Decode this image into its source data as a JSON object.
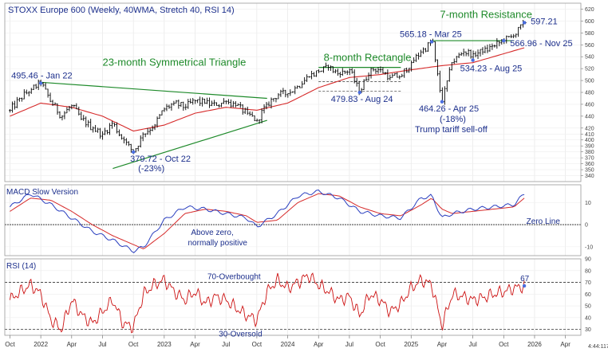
{
  "chart_data": {
    "type": "line",
    "title": "STOXX Europe 600 (Weekly, 40WMA, Stretch 40, RSI 14)",
    "colors": {
      "price": "#000000",
      "ma": "#d62a2a",
      "macd": "#2a3fbf",
      "signal": "#d62a2a",
      "rsi": "#cc1111",
      "trend": "#1e8a2a",
      "annotation": "#1c2f8c"
    },
    "x_range": [
      "2021-10",
      "2026-05"
    ],
    "x_ticks": [
      {
        "label": "Oct",
        "t": 0
      },
      {
        "label": "2022",
        "t": 3
      },
      {
        "label": "Apr",
        "t": 6
      },
      {
        "label": "Jul",
        "t": 9
      },
      {
        "label": "Oct",
        "t": 12
      },
      {
        "label": "2023",
        "t": 15
      },
      {
        "label": "Apr",
        "t": 18
      },
      {
        "label": "Jul",
        "t": 21
      },
      {
        "label": "Oct",
        "t": 24
      },
      {
        "label": "2024",
        "t": 27
      },
      {
        "label": "Apr",
        "t": 30
      },
      {
        "label": "Jul",
        "t": 33
      },
      {
        "label": "Oct",
        "t": 36
      },
      {
        "label": "2025",
        "t": 39
      },
      {
        "label": "Apr",
        "t": 42
      },
      {
        "label": "Jul",
        "t": 45
      },
      {
        "label": "Oct",
        "t": 48
      },
      {
        "label": "2026",
        "t": 51
      },
      {
        "label": "Apr",
        "t": 54
      }
    ],
    "price_panel": {
      "ylim": [
        330,
        630
      ],
      "y_ticks": [
        340,
        350,
        360,
        370,
        380,
        390,
        400,
        410,
        420,
        440,
        460,
        480,
        500,
        520,
        540,
        560,
        580,
        600,
        620
      ],
      "price_anchors": [
        {
          "t": 0,
          "v": 450
        },
        {
          "t": 1,
          "v": 470
        },
        {
          "t": 2,
          "v": 485
        },
        {
          "t": 3,
          "v": 495.46
        },
        {
          "t": 4,
          "v": 465
        },
        {
          "t": 5,
          "v": 440
        },
        {
          "t": 6,
          "v": 458
        },
        {
          "t": 7,
          "v": 435
        },
        {
          "t": 8,
          "v": 420
        },
        {
          "t": 9,
          "v": 410
        },
        {
          "t": 10,
          "v": 428
        },
        {
          "t": 11,
          "v": 400
        },
        {
          "t": 12,
          "v": 379.72
        },
        {
          "t": 13,
          "v": 410
        },
        {
          "t": 14,
          "v": 425
        },
        {
          "t": 15,
          "v": 452
        },
        {
          "t": 16,
          "v": 462
        },
        {
          "t": 17,
          "v": 455
        },
        {
          "t": 18,
          "v": 466
        },
        {
          "t": 19,
          "v": 462
        },
        {
          "t": 20,
          "v": 458
        },
        {
          "t": 21,
          "v": 465
        },
        {
          "t": 22,
          "v": 458
        },
        {
          "t": 23,
          "v": 445
        },
        {
          "t": 24,
          "v": 433
        },
        {
          "t": 25,
          "v": 460
        },
        {
          "t": 26,
          "v": 476
        },
        {
          "t": 27,
          "v": 478
        },
        {
          "t": 28,
          "v": 490
        },
        {
          "t": 29,
          "v": 506
        },
        {
          "t": 30,
          "v": 515
        },
        {
          "t": 31,
          "v": 522
        },
        {
          "t": 32,
          "v": 510
        },
        {
          "t": 33,
          "v": 518
        },
        {
          "t": 34,
          "v": 479.83
        },
        {
          "t": 35,
          "v": 520
        },
        {
          "t": 36,
          "v": 518
        },
        {
          "t": 37,
          "v": 505
        },
        {
          "t": 38,
          "v": 508
        },
        {
          "t": 39,
          "v": 530
        },
        {
          "t": 40,
          "v": 548
        },
        {
          "t": 41,
          "v": 565.18
        },
        {
          "t": 42,
          "v": 464.26
        },
        {
          "t": 43,
          "v": 530
        },
        {
          "t": 44,
          "v": 548
        },
        {
          "t": 45,
          "v": 545
        },
        {
          "t": 46,
          "v": 548
        },
        {
          "t": 47,
          "v": 558
        },
        {
          "t": 48,
          "v": 566.96
        },
        {
          "t": 49,
          "v": 575
        },
        {
          "t": 50,
          "v": 597.21
        }
      ],
      "ma_anchors": [
        {
          "t": 0,
          "v": 440
        },
        {
          "t": 3,
          "v": 462
        },
        {
          "t": 6,
          "v": 455
        },
        {
          "t": 9,
          "v": 440
        },
        {
          "t": 12,
          "v": 415
        },
        {
          "t": 15,
          "v": 425
        },
        {
          "t": 18,
          "v": 445
        },
        {
          "t": 21,
          "v": 455
        },
        {
          "t": 24,
          "v": 450
        },
        {
          "t": 27,
          "v": 462
        },
        {
          "t": 30,
          "v": 488
        },
        {
          "t": 33,
          "v": 505
        },
        {
          "t": 36,
          "v": 510
        },
        {
          "t": 39,
          "v": 518
        },
        {
          "t": 42,
          "v": 525
        },
        {
          "t": 45,
          "v": 530
        },
        {
          "t": 48,
          "v": 545
        },
        {
          "t": 50,
          "v": 555
        }
      ],
      "trendlines": [
        {
          "name": "triangle-upper",
          "from": {
            "t": 3,
            "v": 497
          },
          "to": {
            "t": 25,
            "v": 470
          }
        },
        {
          "name": "triangle-lower",
          "from": {
            "t": 10,
            "v": 352
          },
          "to": {
            "t": 25,
            "v": 433
          }
        },
        {
          "name": "rectangle-top",
          "from": {
            "t": 30,
            "v": 522
          },
          "to": {
            "t": 38,
            "v": 522
          }
        },
        {
          "name": "resistance",
          "from": {
            "t": 41,
            "v": 567
          },
          "to": {
            "t": 49,
            "v": 567
          }
        }
      ],
      "dashed_levels": [
        {
          "name": "rectangle-bottom",
          "from": {
            "t": 30,
            "v": 482
          },
          "to": {
            "t": 38,
            "v": 482
          }
        },
        {
          "name": "rectangle-mid",
          "from": {
            "t": 30,
            "v": 498
          },
          "to": {
            "t": 38,
            "v": 498
          }
        }
      ],
      "annotations": [
        {
          "name": "jan22-label",
          "text": "495.46 - Jan 22",
          "t": 3,
          "v": 495.46
        },
        {
          "name": "oct22-label",
          "text": "379.72 - Oct 22",
          "t": 12,
          "v": 379.72
        },
        {
          "name": "oct22-pct",
          "text": "(-23%)",
          "t": 12,
          "v": 379.72
        },
        {
          "name": "aug24-label",
          "text": "479.83 - Aug 24",
          "t": 34,
          "v": 479.83
        },
        {
          "name": "mar25-label",
          "text": "565.18 - Mar 25",
          "t": 41,
          "v": 565.18
        },
        {
          "name": "apr25-label",
          "text": "464.26 - Apr 25",
          "t": 42,
          "v": 464.26
        },
        {
          "name": "apr25-pct",
          "text": "(-18%)",
          "t": 42,
          "v": 464.26
        },
        {
          "name": "apr25-note",
          "text": "Trump tariff sell-off",
          "t": 42,
          "v": 464.26
        },
        {
          "name": "aug25-label",
          "text": "534.23 - Aug 25",
          "t": 45,
          "v": 534.23
        },
        {
          "name": "nov25-label",
          "text": "566.96 - Nov 25",
          "t": 48,
          "v": 566.96
        },
        {
          "name": "last-label",
          "text": "597.21",
          "t": 50,
          "v": 597.21
        }
      ],
      "patterns": [
        {
          "name": "triangle-title",
          "text": "23-month Symmetrical Triangle"
        },
        {
          "name": "rectangle-title",
          "text": "8-month Rectangle"
        },
        {
          "name": "resistance-title",
          "text": "7-month Resistance"
        }
      ]
    },
    "macd_panel": {
      "title": "MACD Slow Version",
      "ylim": [
        -14,
        18
      ],
      "y_ticks": [
        -10,
        0,
        10
      ],
      "zero_line_label": "Zero Line",
      "note_line1": "Above zero,",
      "note_line2": "normally positive",
      "macd_anchors": [
        {
          "t": 0,
          "v": 8
        },
        {
          "t": 2,
          "v": 14
        },
        {
          "t": 4,
          "v": 9
        },
        {
          "t": 6,
          "v": 3
        },
        {
          "t": 8,
          "v": -3
        },
        {
          "t": 10,
          "v": -7
        },
        {
          "t": 12,
          "v": -12
        },
        {
          "t": 13,
          "v": -10
        },
        {
          "t": 15,
          "v": 2
        },
        {
          "t": 17,
          "v": 8
        },
        {
          "t": 19,
          "v": 7
        },
        {
          "t": 21,
          "v": 5
        },
        {
          "t": 23,
          "v": 3
        },
        {
          "t": 24,
          "v": -1
        },
        {
          "t": 26,
          "v": 5
        },
        {
          "t": 28,
          "v": 13
        },
        {
          "t": 30,
          "v": 15
        },
        {
          "t": 32,
          "v": 12
        },
        {
          "t": 34,
          "v": 6
        },
        {
          "t": 36,
          "v": 4
        },
        {
          "t": 38,
          "v": 3
        },
        {
          "t": 40,
          "v": 12
        },
        {
          "t": 41,
          "v": 13
        },
        {
          "t": 42,
          "v": 3
        },
        {
          "t": 43,
          "v": 5
        },
        {
          "t": 45,
          "v": 7
        },
        {
          "t": 47,
          "v": 8
        },
        {
          "t": 49,
          "v": 9
        },
        {
          "t": 50,
          "v": 14
        }
      ],
      "signal_anchors": [
        {
          "t": 0,
          "v": 6
        },
        {
          "t": 2,
          "v": 12
        },
        {
          "t": 4,
          "v": 11
        },
        {
          "t": 6,
          "v": 6
        },
        {
          "t": 8,
          "v": 0
        },
        {
          "t": 10,
          "v": -5
        },
        {
          "t": 12,
          "v": -9
        },
        {
          "t": 13,
          "v": -11
        },
        {
          "t": 15,
          "v": -4
        },
        {
          "t": 17,
          "v": 5
        },
        {
          "t": 19,
          "v": 7
        },
        {
          "t": 21,
          "v": 6
        },
        {
          "t": 23,
          "v": 4
        },
        {
          "t": 24,
          "v": 1
        },
        {
          "t": 26,
          "v": 2
        },
        {
          "t": 28,
          "v": 10
        },
        {
          "t": 30,
          "v": 14
        },
        {
          "t": 32,
          "v": 13
        },
        {
          "t": 34,
          "v": 8
        },
        {
          "t": 36,
          "v": 5
        },
        {
          "t": 38,
          "v": 4
        },
        {
          "t": 40,
          "v": 9
        },
        {
          "t": 41,
          "v": 12
        },
        {
          "t": 42,
          "v": 7
        },
        {
          "t": 43,
          "v": 5
        },
        {
          "t": 45,
          "v": 6
        },
        {
          "t": 47,
          "v": 7
        },
        {
          "t": 49,
          "v": 8
        },
        {
          "t": 50,
          "v": 12
        }
      ]
    },
    "rsi_panel": {
      "title": "RSI (14)",
      "ylim": [
        25,
        90
      ],
      "y_ticks": [
        30,
        40,
        50,
        60,
        70,
        80,
        90
      ],
      "overbought_label": "70-Overbought",
      "oversold_label": "30-Oversold",
      "last_value_label": "67",
      "rsi_anchors": [
        {
          "t": 0,
          "v": 55
        },
        {
          "t": 1,
          "v": 62
        },
        {
          "t": 2,
          "v": 68
        },
        {
          "t": 3,
          "v": 60
        },
        {
          "t": 4,
          "v": 38
        },
        {
          "t": 5,
          "v": 30
        },
        {
          "t": 6,
          "v": 55
        },
        {
          "t": 7,
          "v": 42
        },
        {
          "t": 8,
          "v": 35
        },
        {
          "t": 9,
          "v": 45
        },
        {
          "t": 10,
          "v": 55
        },
        {
          "t": 11,
          "v": 35
        },
        {
          "t": 12,
          "v": 32
        },
        {
          "t": 13,
          "v": 60
        },
        {
          "t": 14,
          "v": 68
        },
        {
          "t": 15,
          "v": 72
        },
        {
          "t": 16,
          "v": 62
        },
        {
          "t": 17,
          "v": 55
        },
        {
          "t": 18,
          "v": 62
        },
        {
          "t": 19,
          "v": 52
        },
        {
          "t": 20,
          "v": 58
        },
        {
          "t": 21,
          "v": 55
        },
        {
          "t": 22,
          "v": 48
        },
        {
          "t": 23,
          "v": 42
        },
        {
          "t": 24,
          "v": 38
        },
        {
          "t": 25,
          "v": 62
        },
        {
          "t": 26,
          "v": 72
        },
        {
          "t": 27,
          "v": 65
        },
        {
          "t": 28,
          "v": 70
        },
        {
          "t": 29,
          "v": 76
        },
        {
          "t": 30,
          "v": 68
        },
        {
          "t": 31,
          "v": 62
        },
        {
          "t": 32,
          "v": 55
        },
        {
          "t": 33,
          "v": 58
        },
        {
          "t": 34,
          "v": 42
        },
        {
          "t": 35,
          "v": 60
        },
        {
          "t": 36,
          "v": 55
        },
        {
          "t": 37,
          "v": 45
        },
        {
          "t": 38,
          "v": 52
        },
        {
          "t": 39,
          "v": 65
        },
        {
          "t": 40,
          "v": 72
        },
        {
          "t": 41,
          "v": 68
        },
        {
          "t": 42,
          "v": 33
        },
        {
          "t": 43,
          "v": 60
        },
        {
          "t": 44,
          "v": 58
        },
        {
          "t": 45,
          "v": 55
        },
        {
          "t": 46,
          "v": 57
        },
        {
          "t": 47,
          "v": 60
        },
        {
          "t": 48,
          "v": 62
        },
        {
          "t": 49,
          "v": 65
        },
        {
          "t": 50,
          "v": 67
        }
      ]
    },
    "corner_text": "4:44:117"
  }
}
